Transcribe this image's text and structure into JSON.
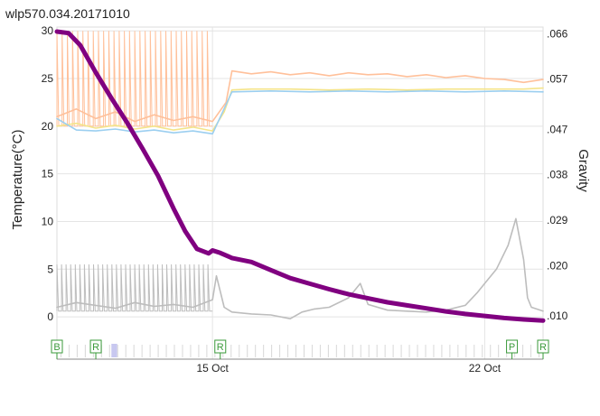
{
  "chart_data": {
    "type": "line",
    "title": "wlp570.034.20171010",
    "ylabel_left": "Temperature(°C)",
    "ylabel_right": "Gravity",
    "left_axis": {
      "ylim": [
        -1.6,
        30.4
      ],
      "ticks": [
        0,
        5,
        10,
        15,
        20,
        25,
        30
      ]
    },
    "right_axis": {
      "ylim": [
        0.0068,
        0.0673
      ],
      "ticks": [
        ".066",
        ".057",
        ".047",
        ".038",
        ".029",
        ".020",
        ".010"
      ]
    },
    "x_axis": {
      "xlim": [
        11,
        23.5
      ],
      "ticks": [
        {
          "value": 15,
          "label": "15 Oct"
        },
        {
          "value": 22,
          "label": "22 Oct"
        }
      ]
    },
    "grid": true,
    "colors": {
      "beer_temp": "#ffc09a",
      "fridge_setting": "#f4e48a",
      "room_temp": "#9ccff0",
      "gravity": "#800080",
      "heater_line": "#bdbdbd",
      "marker_green": "#3a9a3a",
      "cooling_band": "#c8c8f0"
    },
    "series": [
      {
        "axis": "right",
        "color_key": "gravity",
        "points": [
          [
            11.0,
            0.0664
          ],
          [
            11.3,
            0.0661
          ],
          [
            11.6,
            0.0637
          ],
          [
            12.0,
            0.0583
          ],
          [
            12.4,
            0.0532
          ],
          [
            12.8,
            0.0484
          ],
          [
            13.2,
            0.0432
          ],
          [
            13.6,
            0.0378
          ],
          [
            14.0,
            0.0313
          ],
          [
            14.3,
            0.0268
          ],
          [
            14.6,
            0.0233
          ],
          [
            14.9,
            0.0224
          ],
          [
            15.0,
            0.023
          ],
          [
            15.2,
            0.0225
          ],
          [
            15.5,
            0.0215
          ],
          [
            16.0,
            0.0207
          ],
          [
            16.5,
            0.0191
          ],
          [
            17.0,
            0.0175
          ],
          [
            17.5,
            0.0164
          ],
          [
            18.0,
            0.0153
          ],
          [
            18.5,
            0.0143
          ],
          [
            19.0,
            0.0135
          ],
          [
            19.5,
            0.0127
          ],
          [
            20.0,
            0.0121
          ],
          [
            20.5,
            0.0115
          ],
          [
            21.0,
            0.0109
          ],
          [
            21.5,
            0.0104
          ],
          [
            22.0,
            0.01
          ],
          [
            22.5,
            0.0096
          ],
          [
            23.0,
            0.0093
          ],
          [
            23.5,
            0.0091
          ]
        ]
      },
      {
        "axis": "left",
        "color_key": "beer_temp",
        "points": [
          [
            11.0,
            21.0
          ],
          [
            11.5,
            21.8
          ],
          [
            12.0,
            20.8
          ],
          [
            12.5,
            21.5
          ],
          [
            13.0,
            20.5
          ],
          [
            13.5,
            21.2
          ],
          [
            14.0,
            20.6
          ],
          [
            14.5,
            21.0
          ],
          [
            15.0,
            20.5
          ],
          [
            15.35,
            22.5
          ],
          [
            15.5,
            25.8
          ],
          [
            16.0,
            25.5
          ],
          [
            16.5,
            25.7
          ],
          [
            17.0,
            25.4
          ],
          [
            17.5,
            25.6
          ],
          [
            18.0,
            25.3
          ],
          [
            18.5,
            25.6
          ],
          [
            19.0,
            25.4
          ],
          [
            19.5,
            25.5
          ],
          [
            20.0,
            25.2
          ],
          [
            20.5,
            25.4
          ],
          [
            21.0,
            25.1
          ],
          [
            21.5,
            25.3
          ],
          [
            22.0,
            25.0
          ],
          [
            22.5,
            24.9
          ],
          [
            23.0,
            24.6
          ],
          [
            23.5,
            24.9
          ]
        ]
      },
      {
        "axis": "left",
        "color_key": "fridge_setting",
        "points": [
          [
            11.0,
            20.0
          ],
          [
            11.5,
            20.3
          ],
          [
            12.0,
            19.8
          ],
          [
            12.5,
            20.1
          ],
          [
            13.0,
            19.7
          ],
          [
            13.5,
            20.0
          ],
          [
            14.0,
            19.6
          ],
          [
            14.5,
            19.9
          ],
          [
            15.0,
            19.5
          ],
          [
            15.3,
            21.5
          ],
          [
            15.5,
            23.8
          ],
          [
            16.0,
            23.9
          ],
          [
            17.0,
            23.9
          ],
          [
            18.0,
            23.8
          ],
          [
            19.0,
            23.9
          ],
          [
            20.0,
            23.8
          ],
          [
            21.0,
            23.9
          ],
          [
            22.0,
            23.9
          ],
          [
            23.0,
            23.9
          ],
          [
            23.5,
            24.0
          ]
        ]
      },
      {
        "axis": "left",
        "color_key": "room_temp",
        "points": [
          [
            11.0,
            20.8
          ],
          [
            11.5,
            19.6
          ],
          [
            12.0,
            19.5
          ],
          [
            12.5,
            19.7
          ],
          [
            13.0,
            19.4
          ],
          [
            13.5,
            19.6
          ],
          [
            14.0,
            19.3
          ],
          [
            14.5,
            19.5
          ],
          [
            15.0,
            19.2
          ],
          [
            15.5,
            23.6
          ],
          [
            16.5,
            23.7
          ],
          [
            17.5,
            23.6
          ],
          [
            18.5,
            23.7
          ],
          [
            19.5,
            23.6
          ],
          [
            20.5,
            23.7
          ],
          [
            21.5,
            23.6
          ],
          [
            22.5,
            23.7
          ],
          [
            23.5,
            23.6
          ]
        ]
      },
      {
        "axis": "left",
        "color_key": "heater_line",
        "points": [
          [
            11.0,
            1.0
          ],
          [
            11.5,
            1.5
          ],
          [
            12.0,
            1.2
          ],
          [
            12.5,
            0.9
          ],
          [
            13.0,
            1.5
          ],
          [
            13.5,
            1.1
          ],
          [
            14.0,
            1.3
          ],
          [
            14.5,
            1.0
          ],
          [
            15.0,
            1.8
          ],
          [
            15.1,
            4.3
          ],
          [
            15.3,
            1.0
          ],
          [
            15.5,
            0.5
          ],
          [
            16.0,
            0.3
          ],
          [
            16.5,
            0.2
          ],
          [
            17.0,
            -0.2
          ],
          [
            17.3,
            0.5
          ],
          [
            17.6,
            0.8
          ],
          [
            18.0,
            1.0
          ],
          [
            18.5,
            2.0
          ],
          [
            18.8,
            3.5
          ],
          [
            19.0,
            1.3
          ],
          [
            19.5,
            0.7
          ],
          [
            20.0,
            0.6
          ],
          [
            20.5,
            0.5
          ],
          [
            21.0,
            0.7
          ],
          [
            21.5,
            1.2
          ],
          [
            21.8,
            2.5
          ],
          [
            22.0,
            3.5
          ],
          [
            22.3,
            5.0
          ],
          [
            22.6,
            7.5
          ],
          [
            22.8,
            10.3
          ],
          [
            23.0,
            6.0
          ],
          [
            23.1,
            2.0
          ],
          [
            23.2,
            1.0
          ],
          [
            23.5,
            0.6
          ]
        ]
      }
    ],
    "spiky_segments": [
      {
        "axis": "left",
        "color_key": "beer_temp",
        "x_start": 11.0,
        "x_end": 15.0,
        "low": 20.0,
        "high": 30.0,
        "count": 30
      },
      {
        "axis": "left",
        "color_key": "heater_line",
        "x_start": 11.0,
        "x_end": 15.0,
        "low": 0.6,
        "high": 5.5,
        "count": 34
      }
    ],
    "markers": [
      {
        "x": 11.0,
        "label": "B"
      },
      {
        "x": 12.0,
        "label": "R"
      },
      {
        "x": 15.2,
        "label": "R"
      },
      {
        "x": 22.7,
        "label": "P"
      },
      {
        "x": 23.5,
        "label": "R"
      }
    ],
    "cooling_bands": [
      [
        12.4,
        12.55
      ]
    ]
  }
}
